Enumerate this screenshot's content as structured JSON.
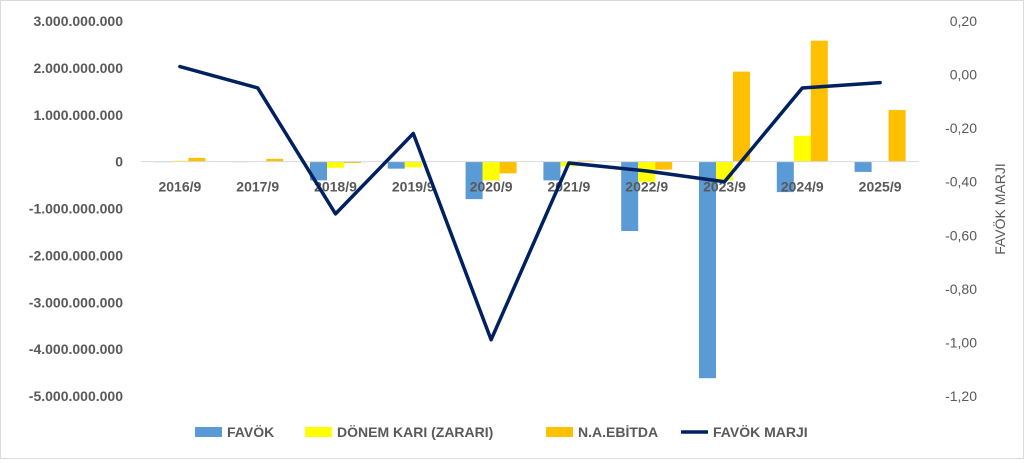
{
  "chart_data": {
    "type": "bar",
    "categories": [
      "2016/9",
      "2017/9",
      "2018/9",
      "2019/9",
      "2020/9",
      "2021/9",
      "2022/9",
      "2023/9",
      "2024/9",
      "2025/9"
    ],
    "series": [
      {
        "name": "FAVÖK",
        "type": "bar",
        "axis": "left",
        "values": [
          -5000000,
          -10000000,
          -400000000,
          -150000000,
          -800000000,
          -400000000,
          -1480000000,
          -4620000000,
          -650000000,
          -220000000
        ]
      },
      {
        "name": "DÖNEM KARI (ZARARI)",
        "type": "bar",
        "axis": "left",
        "values": [
          20000000,
          0,
          -130000000,
          -120000000,
          -400000000,
          -100000000,
          -430000000,
          -400000000,
          550000000,
          0
        ]
      },
      {
        "name": "N.A.EBİTDA",
        "type": "bar",
        "axis": "left",
        "values": [
          80000000,
          60000000,
          -30000000,
          0,
          -250000000,
          20000000,
          -170000000,
          1920000000,
          2580000000,
          1100000000
        ]
      },
      {
        "name": "FAVÖK MARJI",
        "type": "line",
        "axis": "right",
        "values": [
          0.03,
          -0.05,
          -0.52,
          -0.22,
          -0.99,
          -0.33,
          -0.36,
          -0.4,
          -0.05,
          -0.03
        ]
      }
    ],
    "left_axis": {
      "min": -5000000000,
      "max": 3000000000,
      "step": 1000000000,
      "tick_labels": [
        "3.000.000.000",
        "2.000.000.000",
        "1.000.000.000",
        "0",
        "-1.000.000.000",
        "-2.000.000.000",
        "-3.000.000.000",
        "-4.000.000.000",
        "-5.000.000.000"
      ]
    },
    "right_axis": {
      "min": -1.2,
      "max": 0.2,
      "step": 0.2,
      "title": "FAVÖK MARJI",
      "tick_labels": [
        "0,20",
        "0,00",
        "-0,20",
        "-0,40",
        "-0,60",
        "-0,80",
        "-1,00",
        "-1,20"
      ]
    },
    "legend_position": "bottom",
    "grid": false,
    "colors": {
      "FAVÖK": "#5b9bd5",
      "DÖNEM KARI (ZARARI)": "#ffff00",
      "N.A.EBİTDA": "#ffc000",
      "FAVÖK MARJI": "#002060"
    }
  }
}
